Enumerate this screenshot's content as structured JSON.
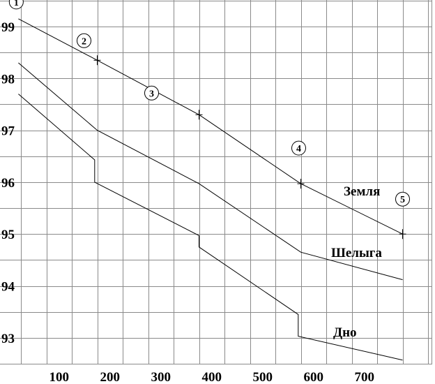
{
  "chart_data": {
    "type": "line",
    "title": "",
    "xlabel": "",
    "ylabel": "",
    "xlim": [
      0,
      800
    ],
    "ylim": [
      92.6,
      99.45
    ],
    "x_ticks": [
      100,
      200,
      300,
      400,
      500,
      600,
      700
    ],
    "x_tick_labels": [
      "100",
      "200",
      "300",
      "400",
      "500",
      "600",
      "700"
    ],
    "y_ticks": [
      93,
      94,
      95,
      96,
      97,
      98,
      99
    ],
    "y_tick_labels": [
      "93",
      "94",
      "95",
      "96",
      "97",
      "98",
      "99"
    ],
    "grid": true,
    "grid_x_step": 50,
    "grid_y_step": 0.5,
    "series": [
      {
        "name": "Земля",
        "points": [
          [
            20,
            99.15
          ],
          [
            175,
            98.35
          ],
          [
            375,
            97.3
          ],
          [
            575,
            95.97
          ],
          [
            775,
            95.0
          ]
        ]
      },
      {
        "name": "Шелыга",
        "points": [
          [
            20,
            98.3
          ],
          [
            175,
            97.0
          ],
          [
            375,
            95.97
          ],
          [
            575,
            94.65
          ],
          [
            775,
            94.12
          ]
        ]
      },
      {
        "name": "Дно",
        "points": [
          [
            20,
            97.7
          ],
          [
            170,
            96.43
          ],
          [
            170,
            96.0
          ],
          [
            375,
            94.97
          ],
          [
            375,
            94.75
          ],
          [
            570,
            93.45
          ],
          [
            570,
            93.03
          ],
          [
            775,
            92.57
          ]
        ]
      }
    ],
    "markers": [
      {
        "label": "1",
        "x": 20,
        "y": 99.15
      },
      {
        "label": "2",
        "x": 175,
        "y": 98.35
      },
      {
        "label": "3",
        "x": 375,
        "y": 97.3
      },
      {
        "label": "4",
        "x": 575,
        "y": 95.97
      },
      {
        "label": "5",
        "x": 775,
        "y": 95.0
      }
    ]
  }
}
